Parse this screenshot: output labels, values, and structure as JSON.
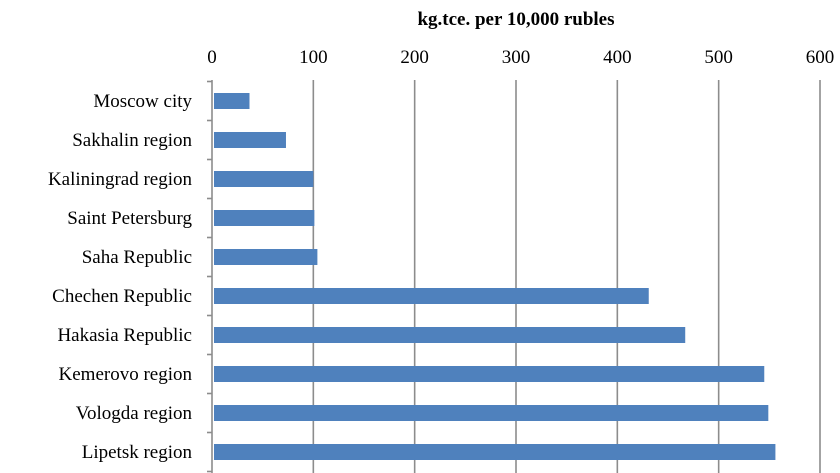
{
  "chart_data": {
    "type": "bar",
    "orientation": "horizontal",
    "title": "",
    "xlabel": "kg.tce. per 10,000 rubles",
    "ylabel": "",
    "xlim": [
      0,
      600
    ],
    "x_ticks": [
      0,
      100,
      200,
      300,
      400,
      500,
      600
    ],
    "grid": "vertical",
    "x_axis_position": "top",
    "legend": "none",
    "bar_color": "#4f81bd",
    "categories": [
      "Moscow city",
      "Sakhalin region",
      "Kaliningrad region",
      "Saint Petersburg",
      "Saha Republic",
      "Chechen Republic",
      "Hakasia Republic",
      "Kemerovo region",
      "Vologda region",
      "Lipetsk region"
    ],
    "values": [
      37,
      73,
      100,
      101,
      104,
      431,
      467,
      545,
      549,
      556
    ]
  }
}
